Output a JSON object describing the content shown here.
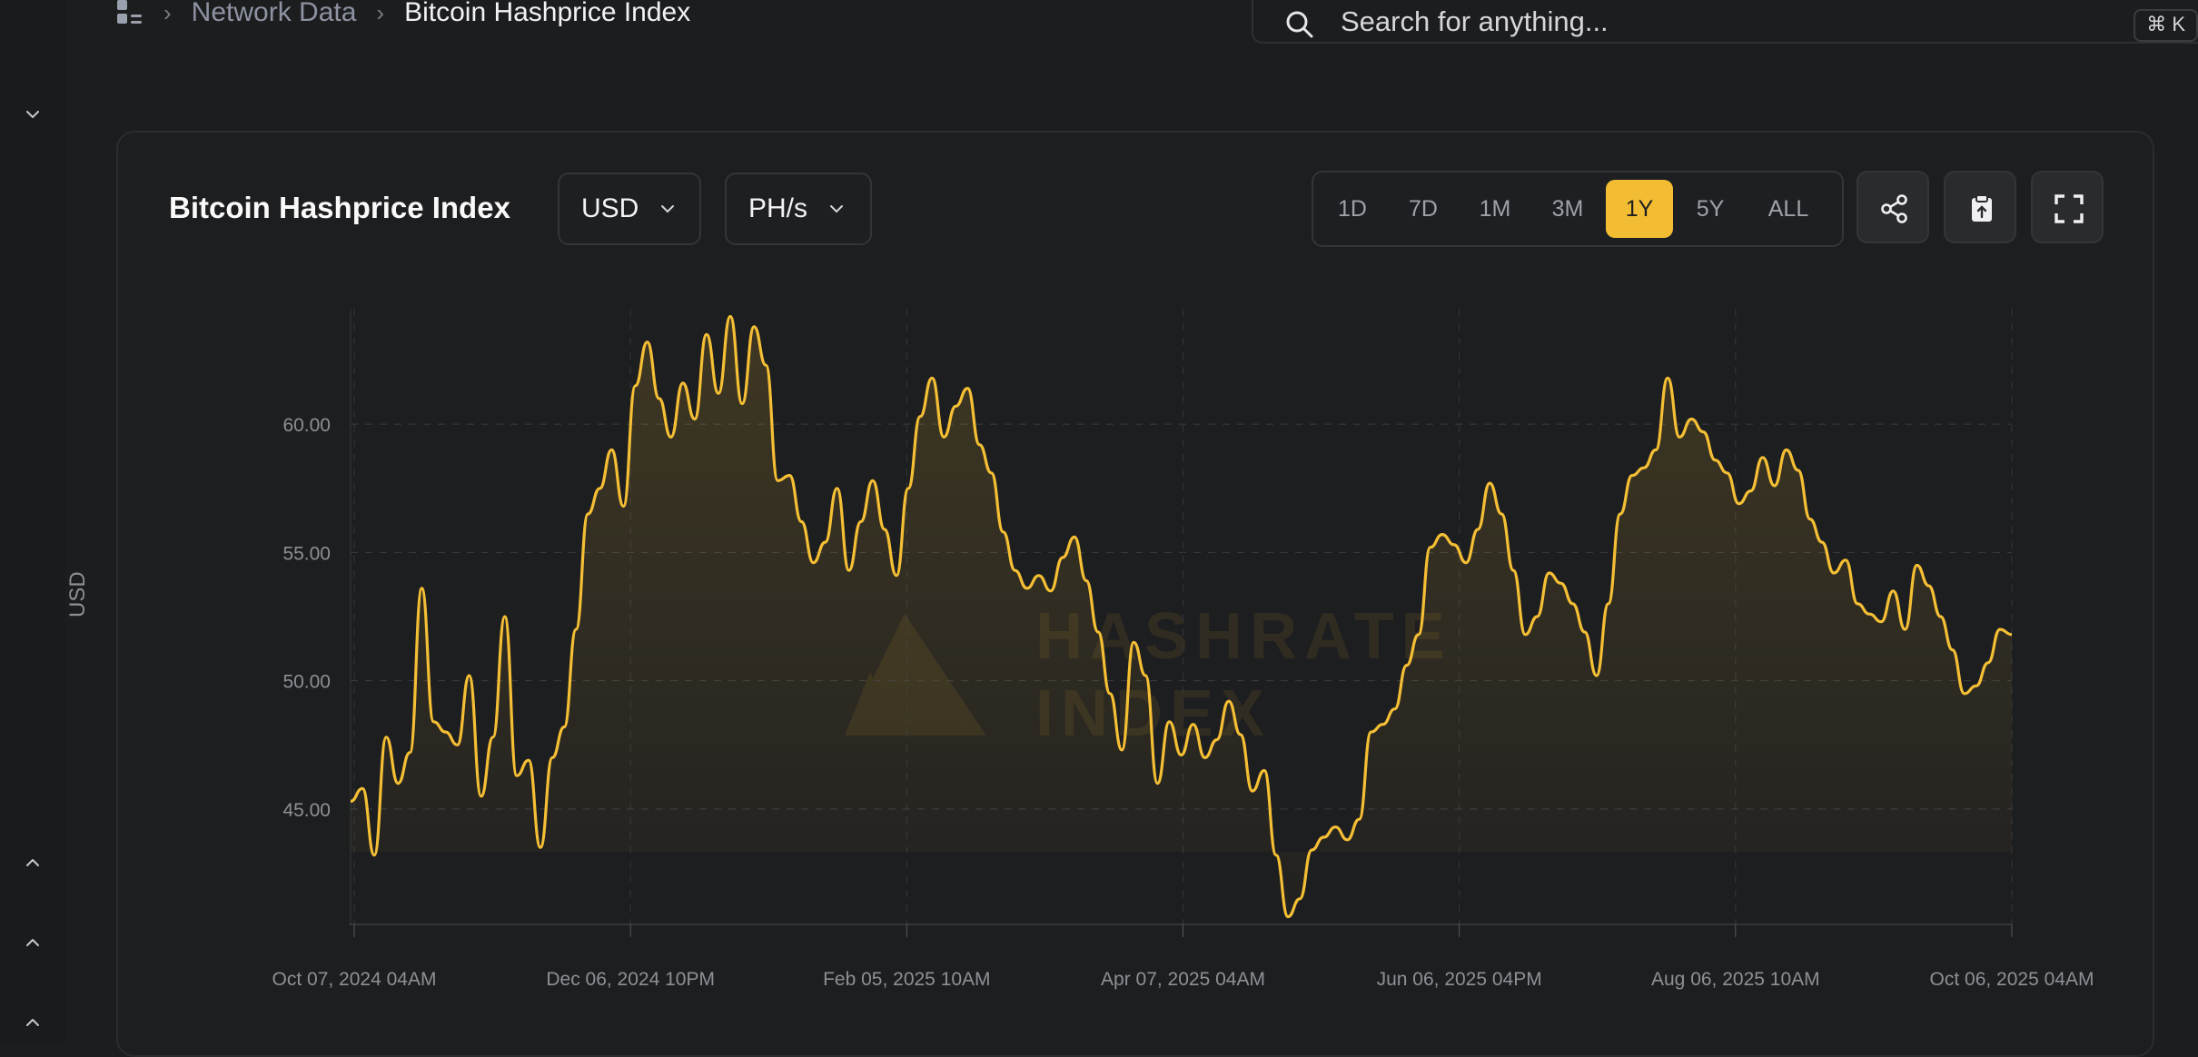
{
  "breadcrumb": {
    "items": [
      "Network Data",
      "Bitcoin Hashprice Index"
    ]
  },
  "search": {
    "placeholder": "Search for anything...",
    "shortcut": "⌘ K"
  },
  "card": {
    "title": "Bitcoin Hashprice Index",
    "currency": "USD",
    "unit": "PH/s",
    "ranges": [
      "1D",
      "7D",
      "1M",
      "3M",
      "1Y",
      "5Y",
      "ALL"
    ],
    "active_range": "1Y"
  },
  "watermark": [
    "HASHRATE",
    "INDEX"
  ],
  "colors": {
    "accent": "#f2bd33",
    "line": "#f5bf35",
    "background": "#1c1d1f"
  },
  "icons": [
    "grid-icon",
    "search-icon",
    "share-icon",
    "clipboard-icon",
    "fullscreen-icon"
  ],
  "chart_data": {
    "type": "area",
    "ylabel": "USD",
    "ylim": [
      40.5,
      64.5
    ],
    "yticks": [
      "45.00",
      "50.00",
      "55.00",
      "60.00"
    ],
    "ytick_values": [
      45,
      50,
      55,
      60
    ],
    "xticks": [
      "Oct 07, 2024 04AM",
      "Dec 06, 2024 10PM",
      "Feb 05, 2025 10AM",
      "Apr 07, 2025 04AM",
      "Jun 06, 2025 04PM",
      "Aug 06, 2025 10AM",
      "Oct 06, 2025 04AM"
    ],
    "x_start": "2024-10-07",
    "x_end": "2025-10-06",
    "grid": true,
    "series": [
      {
        "values": [
          45.3,
          45.8,
          43.2,
          47.8,
          46.0,
          47.2,
          53.6,
          48.4,
          48.0,
          47.5,
          50.2,
          45.5,
          47.8,
          52.5,
          46.3,
          46.9,
          43.5,
          47.0,
          48.2,
          52.0,
          56.5,
          57.5,
          59.0,
          56.8,
          61.5,
          63.2,
          61.0,
          59.5,
          61.6,
          60.2,
          63.5,
          61.2,
          64.2,
          60.8,
          63.8,
          62.3,
          57.8,
          58.0,
          56.2,
          54.6,
          55.4,
          57.5,
          54.3,
          56.2,
          57.8,
          55.9,
          54.1,
          57.5,
          60.3,
          61.8,
          59.5,
          60.7,
          61.4,
          59.2,
          58.1,
          55.8,
          54.3,
          53.6,
          54.1,
          53.5,
          54.8,
          55.6,
          53.9,
          51.9,
          49.5,
          47.3,
          51.5,
          50.2,
          46.0,
          48.4,
          47.1,
          48.3,
          47.0,
          47.7,
          49.2,
          47.9,
          45.7,
          46.5,
          43.2,
          40.8,
          41.5,
          43.4,
          43.9,
          44.3,
          43.8,
          44.6,
          48.0,
          48.3,
          48.9,
          50.6,
          51.8,
          55.2,
          55.7,
          55.3,
          54.6,
          55.9,
          57.7,
          56.5,
          54.3,
          51.8,
          52.5,
          54.2,
          53.8,
          53.0,
          51.9,
          50.2,
          53.0,
          56.5,
          58.0,
          58.3,
          59.0,
          61.8,
          59.5,
          60.2,
          59.7,
          58.6,
          58.1,
          56.9,
          57.4,
          58.7,
          57.6,
          59.0,
          58.2,
          56.3,
          55.4,
          54.2,
          54.7,
          53.0,
          52.6,
          52.3,
          53.5,
          52.0,
          54.5,
          53.7,
          52.5,
          51.2,
          49.5,
          49.8,
          50.7,
          52.0,
          51.8
        ]
      }
    ]
  }
}
